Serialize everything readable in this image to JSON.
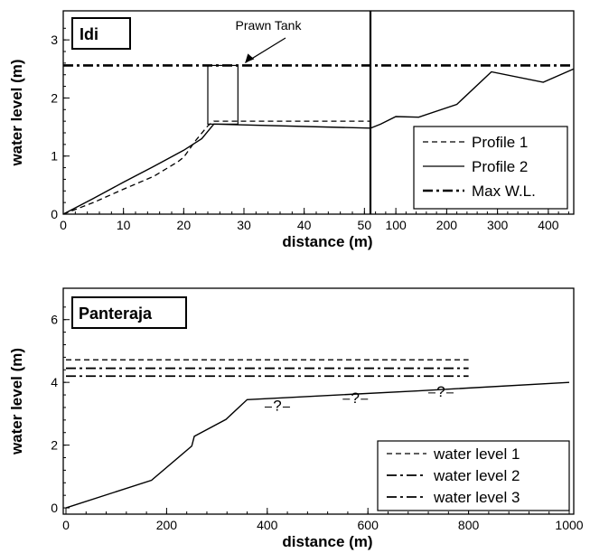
{
  "chart_data": [
    {
      "type": "line",
      "title": "Idi",
      "ylabel": "water level (m)",
      "xlabel": "distance (m)",
      "ylim": [
        0,
        3.5
      ],
      "yticks": [
        0,
        1,
        2,
        3
      ],
      "panels": [
        {
          "xlim": [
            0,
            51
          ],
          "xticks": [
            0,
            10,
            20,
            30,
            40,
            50
          ]
        },
        {
          "xlim": [
            50,
            450
          ],
          "xticks": [
            100,
            200,
            300,
            400
          ]
        }
      ],
      "legend_position": "bottom-right",
      "series": [
        {
          "name": "Profile 1",
          "style": "dashed",
          "points": [
            [
              0,
              0
            ],
            [
              5,
              0.2
            ],
            [
              10,
              0.43
            ],
            [
              15,
              0.65
            ],
            [
              19,
              0.9
            ],
            [
              20,
              0.98
            ],
            [
              22,
              1.27
            ],
            [
              24,
              1.52
            ],
            [
              25,
              1.6
            ],
            [
              51,
              1.6
            ]
          ]
        },
        {
          "name": "Profile 2",
          "style": "solid",
          "points": [
            [
              0,
              0
            ],
            [
              5,
              0.27
            ],
            [
              10,
              0.55
            ],
            [
              15,
              0.82
            ],
            [
              20,
              1.1
            ],
            [
              23,
              1.3
            ],
            [
              25,
              1.55
            ],
            [
              51,
              1.48
            ],
            [
              50,
              1.48
            ],
            [
              70,
              1.55
            ],
            [
              100,
              1.68
            ],
            [
              145,
              1.67
            ],
            [
              220,
              1.89
            ],
            [
              288,
              2.45
            ],
            [
              390,
              2.27
            ],
            [
              450,
              2.5
            ]
          ]
        },
        {
          "name": "Max W.L.",
          "style": "dash-dot",
          "y": 2.56
        }
      ],
      "prawn_tank": {
        "label": "Prawn Tank",
        "x": [
          24,
          29
        ],
        "y": [
          1.55,
          2.56
        ]
      }
    },
    {
      "type": "line",
      "title": "Panteraja",
      "ylabel": "water level (m)",
      "xlabel": "distance (m)",
      "xlim": [
        0,
        1000
      ],
      "ylim": [
        -0.2,
        7
      ],
      "xticks": [
        0,
        200,
        400,
        600,
        800,
        1000
      ],
      "yticks": [
        0,
        2,
        4,
        6
      ],
      "legend_position": "bottom-right",
      "series": [
        {
          "name": "water level 1",
          "style": "dashed",
          "y": 4.72,
          "x": [
            0,
            800
          ]
        },
        {
          "name": "water level 2",
          "style": "dash-dot",
          "y": 4.45,
          "x": [
            0,
            800
          ]
        },
        {
          "name": "water level 3",
          "style": "dash-dot",
          "y": 4.2,
          "x": [
            0,
            800
          ]
        },
        {
          "name": "",
          "style": "solid",
          "points": [
            [
              0,
              0
            ],
            [
              170,
              0.88
            ],
            [
              250,
              1.97
            ],
            [
              255,
              2.28
            ],
            [
              318,
              2.82
            ],
            [
              360,
              3.45
            ],
            [
              700,
              3.73
            ],
            [
              1000,
              4.0
            ]
          ]
        }
      ],
      "question_marks": [
        {
          "text": "?",
          "x": 420,
          "y": 3.3
        },
        {
          "text": "?",
          "x": 575,
          "y": 3.55
        },
        {
          "text": "?",
          "x": 745,
          "y": 3.75
        }
      ]
    }
  ]
}
